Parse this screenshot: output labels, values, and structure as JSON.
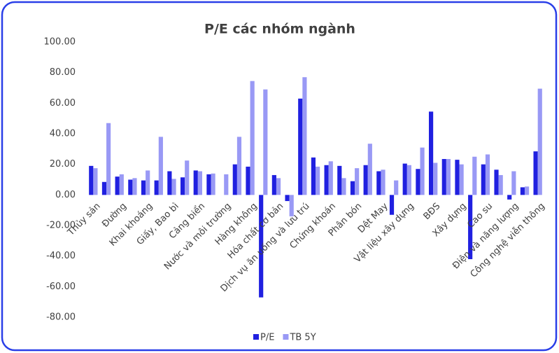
{
  "chart_data": {
    "type": "bar",
    "title": "P/E các nhóm ngành",
    "categories": [
      "Thủy sản",
      null,
      "Đường",
      null,
      "Khai khoáng",
      null,
      "Giấy, Bao bì",
      null,
      "Cảng biển",
      null,
      "Nước và môi trường",
      null,
      "Hàng không",
      null,
      "Hóa chất cơ bản",
      null,
      "Dịch vụ ăn uống và lưu trú",
      null,
      "Chứng khoán",
      null,
      "Phân bón",
      null,
      "Dệt May",
      null,
      "Vật liệu xây dựng",
      null,
      "BĐS",
      null,
      "Xây dựng",
      null,
      "Cao su",
      null,
      "Điện và năng lượng",
      null,
      "Công nghệ viễn thông"
    ],
    "series": [
      {
        "name": "P/E",
        "color": "#2020e0",
        "values": [
          19,
          8.5,
          12,
          10,
          9.5,
          9.5,
          15.5,
          11.5,
          16,
          13.5,
          null,
          20,
          18.5,
          -67,
          13,
          -4,
          63,
          24.5,
          19.5,
          19,
          9,
          19.5,
          15.5,
          -13,
          20.5,
          17,
          54.5,
          23.5,
          23,
          -42,
          20,
          16.5,
          -3,
          5,
          28.5
        ]
      },
      {
        "name": "TB 5Y",
        "color": "#9999f5",
        "values": [
          17.5,
          47,
          13.5,
          11,
          16,
          38,
          10.5,
          22.5,
          15.5,
          14,
          13.5,
          38,
          74.5,
          69,
          11,
          -14,
          77,
          18.5,
          22,
          11,
          17.5,
          33.5,
          16.5,
          9.5,
          19.5,
          31,
          21,
          23.5,
          20,
          25,
          26.5,
          13,
          15.5,
          5.5,
          69.5
        ]
      }
    ],
    "ylim": [
      -80,
      100
    ],
    "yticks": [
      {
        "value": -80,
        "label": "-80.00"
      },
      {
        "value": -60,
        "label": "-60.00"
      },
      {
        "value": -40,
        "label": "-40.00"
      },
      {
        "value": -20,
        "label": "-20.00"
      },
      {
        "value": 0,
        "label": "0.00"
      },
      {
        "value": 20,
        "label": "20.00"
      },
      {
        "value": 40,
        "label": "40.00"
      },
      {
        "value": 60,
        "label": "60.00"
      },
      {
        "value": 80,
        "label": "80.00"
      },
      {
        "value": 100,
        "label": "100.00"
      }
    ],
    "grid": false,
    "legend": "bottom"
  }
}
